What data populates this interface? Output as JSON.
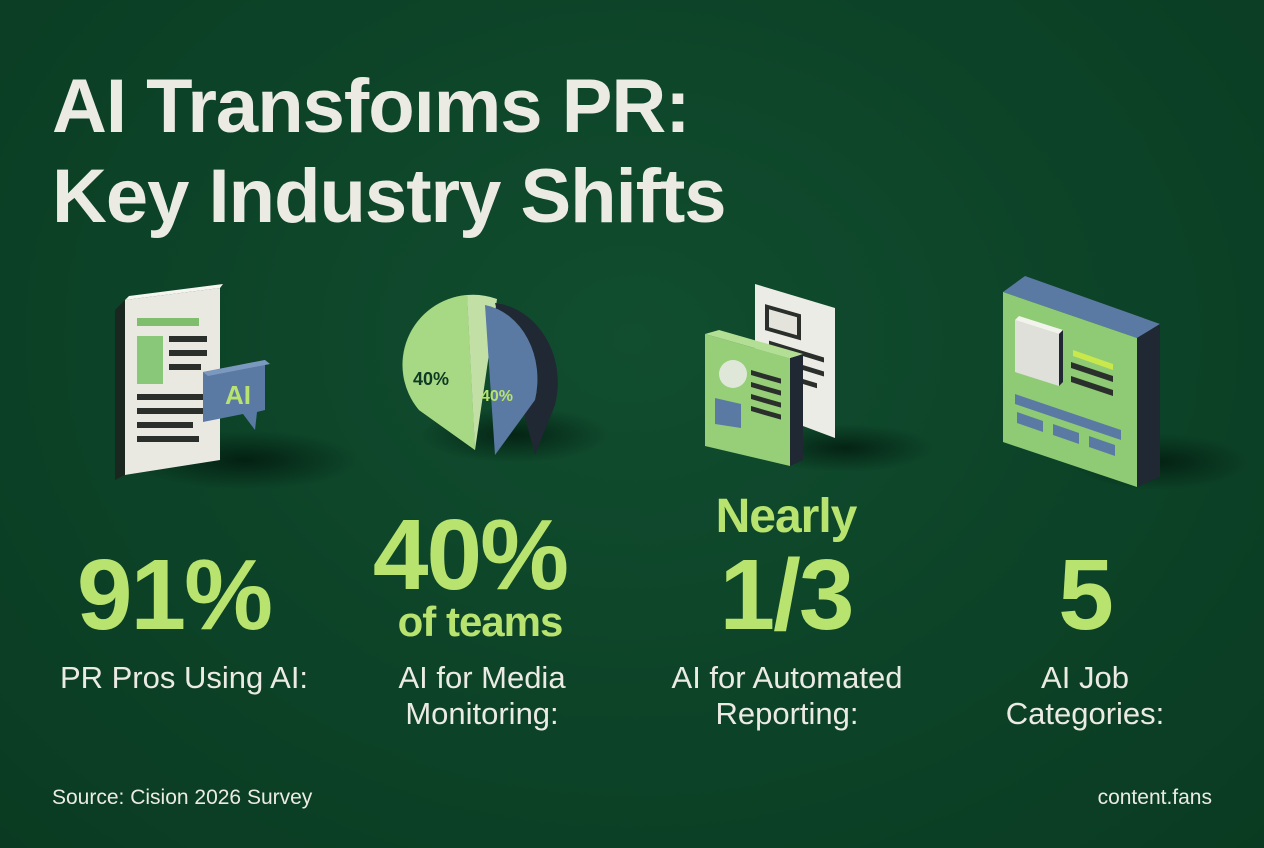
{
  "title": {
    "line1": "AI Transfoıms PR:",
    "line2": "Key Industry Shifts"
  },
  "stats": [
    {
      "value": "91%",
      "label_line1": "PR Pros Using AI:",
      "label_line2": "",
      "icon": "news-ai-document-icon",
      "icon_text": "AI"
    },
    {
      "value": "40%",
      "secondary": "of teams",
      "label_line1": "AI for Media",
      "label_line2": "Monitoring:",
      "icon": "pie-chart-icon",
      "icon_text_a": "40%",
      "icon_text_b": "40%"
    },
    {
      "prefix": "Nearly",
      "value": "1/3",
      "label_line1": "AI for Automated",
      "label_line2": "Reporting:",
      "icon": "report-documents-icon"
    },
    {
      "value": "5",
      "label_line1": "AI Job",
      "label_line2": "Categories:",
      "icon": "dashboard-panel-icon"
    }
  ],
  "footer": {
    "source": "Source: Cision 2026 Survey",
    "brand": "content.fans"
  },
  "colors": {
    "background": "#0d4429",
    "accent": "#b8e36e",
    "text": "#ecebe3",
    "blue": "#5a7aa4"
  }
}
